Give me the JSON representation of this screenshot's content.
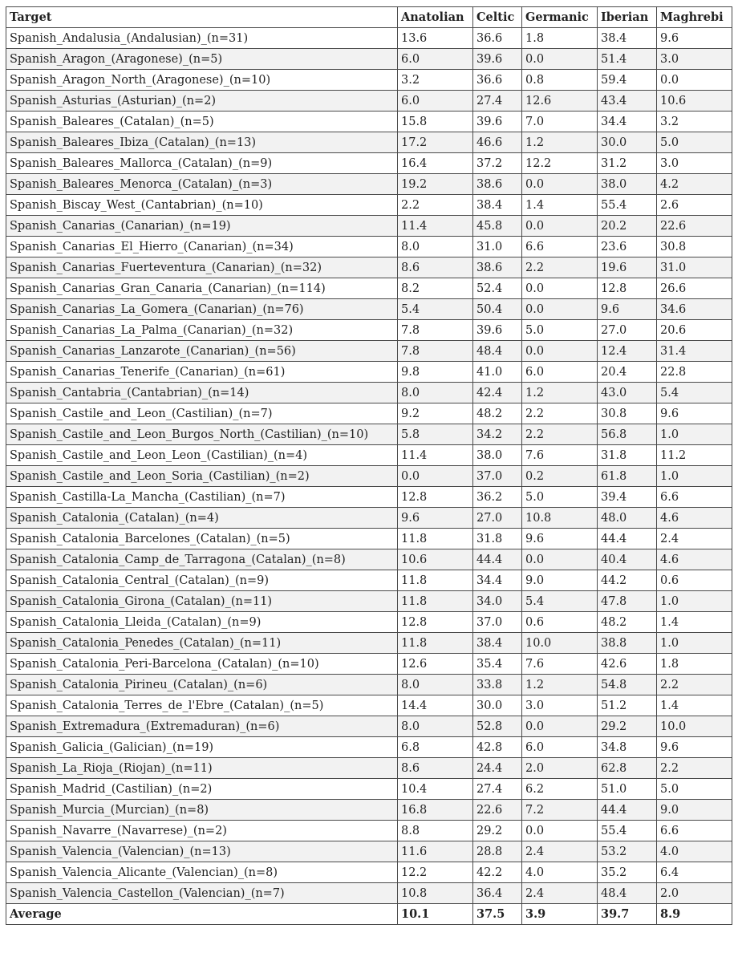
{
  "table": {
    "headers": [
      "Target",
      "Anatolian",
      "Celtic",
      "Germanic",
      "Iberian",
      "Maghrebi"
    ],
    "rows": [
      [
        "Spanish_Andalusia_(Andalusian)_(n=31)",
        "13.6",
        "36.6",
        "1.8",
        "38.4",
        "9.6"
      ],
      [
        "Spanish_Aragon_(Aragonese)_(n=5)",
        "6.0",
        "39.6",
        "0.0",
        "51.4",
        "3.0"
      ],
      [
        "Spanish_Aragon_North_(Aragonese)_(n=10)",
        "3.2",
        "36.6",
        "0.8",
        "59.4",
        "0.0"
      ],
      [
        "Spanish_Asturias_(Asturian)_(n=2)",
        "6.0",
        "27.4",
        "12.6",
        "43.4",
        "10.6"
      ],
      [
        "Spanish_Baleares_(Catalan)_(n=5)",
        "15.8",
        "39.6",
        "7.0",
        "34.4",
        "3.2"
      ],
      [
        "Spanish_Baleares_Ibiza_(Catalan)_(n=13)",
        "17.2",
        "46.6",
        "1.2",
        "30.0",
        "5.0"
      ],
      [
        "Spanish_Baleares_Mallorca_(Catalan)_(n=9)",
        "16.4",
        "37.2",
        "12.2",
        "31.2",
        "3.0"
      ],
      [
        "Spanish_Baleares_Menorca_(Catalan)_(n=3)",
        "19.2",
        "38.6",
        "0.0",
        "38.0",
        "4.2"
      ],
      [
        "Spanish_Biscay_West_(Cantabrian)_(n=10)",
        "2.2",
        "38.4",
        "1.4",
        "55.4",
        "2.6"
      ],
      [
        "Spanish_Canarias_(Canarian)_(n=19)",
        "11.4",
        "45.8",
        "0.0",
        "20.2",
        "22.6"
      ],
      [
        "Spanish_Canarias_El_Hierro_(Canarian)_(n=34)",
        "8.0",
        "31.0",
        "6.6",
        "23.6",
        "30.8"
      ],
      [
        "Spanish_Canarias_Fuerteventura_(Canarian)_(n=32)",
        "8.6",
        "38.6",
        "2.2",
        "19.6",
        "31.0"
      ],
      [
        "Spanish_Canarias_Gran_Canaria_(Canarian)_(n=114)",
        "8.2",
        "52.4",
        "0.0",
        "12.8",
        "26.6"
      ],
      [
        "Spanish_Canarias_La_Gomera_(Canarian)_(n=76)",
        "5.4",
        "50.4",
        "0.0",
        "9.6",
        "34.6"
      ],
      [
        "Spanish_Canarias_La_Palma_(Canarian)_(n=32)",
        "7.8",
        "39.6",
        "5.0",
        "27.0",
        "20.6"
      ],
      [
        "Spanish_Canarias_Lanzarote_(Canarian)_(n=56)",
        "7.8",
        "48.4",
        "0.0",
        "12.4",
        "31.4"
      ],
      [
        "Spanish_Canarias_Tenerife_(Canarian)_(n=61)",
        "9.8",
        "41.0",
        "6.0",
        "20.4",
        "22.8"
      ],
      [
        "Spanish_Cantabria_(Cantabrian)_(n=14)",
        "8.0",
        "42.4",
        "1.2",
        "43.0",
        "5.4"
      ],
      [
        "Spanish_Castile_and_Leon_(Castilian)_(n=7)",
        "9.2",
        "48.2",
        "2.2",
        "30.8",
        "9.6"
      ],
      [
        "Spanish_Castile_and_Leon_Burgos_North_(Castilian)_(n=10)",
        "5.8",
        "34.2",
        "2.2",
        "56.8",
        "1.0"
      ],
      [
        "Spanish_Castile_and_Leon_Leon_(Castilian)_(n=4)",
        "11.4",
        "38.0",
        "7.6",
        "31.8",
        "11.2"
      ],
      [
        "Spanish_Castile_and_Leon_Soria_(Castilian)_(n=2)",
        "0.0",
        "37.0",
        "0.2",
        "61.8",
        "1.0"
      ],
      [
        "Spanish_Castilla-La_Mancha_(Castilian)_(n=7)",
        "12.8",
        "36.2",
        "5.0",
        "39.4",
        "6.6"
      ],
      [
        "Spanish_Catalonia_(Catalan)_(n=4)",
        "9.6",
        "27.0",
        "10.8",
        "48.0",
        "4.6"
      ],
      [
        "Spanish_Catalonia_Barcelones_(Catalan)_(n=5)",
        "11.8",
        "31.8",
        "9.6",
        "44.4",
        "2.4"
      ],
      [
        "Spanish_Catalonia_Camp_de_Tarragona_(Catalan)_(n=8)",
        "10.6",
        "44.4",
        "0.0",
        "40.4",
        "4.6"
      ],
      [
        "Spanish_Catalonia_Central_(Catalan)_(n=9)",
        "11.8",
        "34.4",
        "9.0",
        "44.2",
        "0.6"
      ],
      [
        "Spanish_Catalonia_Girona_(Catalan)_(n=11)",
        "11.8",
        "34.0",
        "5.4",
        "47.8",
        "1.0"
      ],
      [
        "Spanish_Catalonia_Lleida_(Catalan)_(n=9)",
        "12.8",
        "37.0",
        "0.6",
        "48.2",
        "1.4"
      ],
      [
        "Spanish_Catalonia_Penedes_(Catalan)_(n=11)",
        "11.8",
        "38.4",
        "10.0",
        "38.8",
        "1.0"
      ],
      [
        "Spanish_Catalonia_Peri-Barcelona_(Catalan)_(n=10)",
        "12.6",
        "35.4",
        "7.6",
        "42.6",
        "1.8"
      ],
      [
        "Spanish_Catalonia_Pirineu_(Catalan)_(n=6)",
        "8.0",
        "33.8",
        "1.2",
        "54.8",
        "2.2"
      ],
      [
        "Spanish_Catalonia_Terres_de_l'Ebre_(Catalan)_(n=5)",
        "14.4",
        "30.0",
        "3.0",
        "51.2",
        "1.4"
      ],
      [
        "Spanish_Extremadura_(Extremaduran)_(n=6)",
        "8.0",
        "52.8",
        "0.0",
        "29.2",
        "10.0"
      ],
      [
        "Spanish_Galicia_(Galician)_(n=19)",
        "6.8",
        "42.8",
        "6.0",
        "34.8",
        "9.6"
      ],
      [
        "Spanish_La_Rioja_(Riojan)_(n=11)",
        "8.6",
        "24.4",
        "2.0",
        "62.8",
        "2.2"
      ],
      [
        "Spanish_Madrid_(Castilian)_(n=2)",
        "10.4",
        "27.4",
        "6.2",
        "51.0",
        "5.0"
      ],
      [
        "Spanish_Murcia_(Murcian)_(n=8)",
        "16.8",
        "22.6",
        "7.2",
        "44.4",
        "9.0"
      ],
      [
        "Spanish_Navarre_(Navarrese)_(n=2)",
        "8.8",
        "29.2",
        "0.0",
        "55.4",
        "6.6"
      ],
      [
        "Spanish_Valencia_(Valencian)_(n=13)",
        "11.6",
        "28.8",
        "2.4",
        "53.2",
        "4.0"
      ],
      [
        "Spanish_Valencia_Alicante_(Valencian)_(n=8)",
        "12.2",
        "42.2",
        "4.0",
        "35.2",
        "6.4"
      ],
      [
        "Spanish_Valencia_Castellon_(Valencian)_(n=7)",
        "10.8",
        "36.4",
        "2.4",
        "48.4",
        "2.0"
      ]
    ],
    "average": [
      "Average",
      "10.1",
      "37.5",
      "3.9",
      "39.7",
      "8.9"
    ]
  }
}
